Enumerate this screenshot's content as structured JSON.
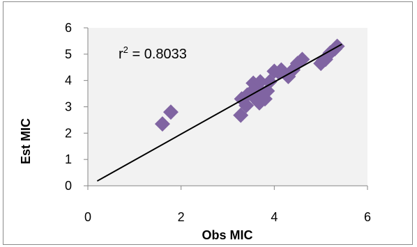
{
  "chart_data": {
    "type": "scatter",
    "title": "",
    "xlabel": "Obs MIC",
    "ylabel": "Est MIC",
    "xlim": [
      0,
      6
    ],
    "ylim": [
      0,
      6
    ],
    "xticks": [
      "0",
      "2",
      "4",
      "6"
    ],
    "yticks": [
      "0",
      "1",
      "2",
      "3",
      "4",
      "5",
      "6"
    ],
    "grid": false,
    "plot_background": "#f2f2f2",
    "marker_color": "#8064a2",
    "trendline_color": "#000000",
    "annotation": {
      "base": "r",
      "sup": "2",
      "rest": " = 0.8033"
    },
    "trendline": {
      "x": [
        0.2,
        5.45
      ],
      "y": [
        0.18,
        5.38
      ]
    },
    "points": [
      {
        "x": 1.6,
        "y": 2.35
      },
      {
        "x": 1.78,
        "y": 2.8
      },
      {
        "x": 3.28,
        "y": 2.68
      },
      {
        "x": 3.3,
        "y": 3.3
      },
      {
        "x": 3.4,
        "y": 3.05
      },
      {
        "x": 3.42,
        "y": 3.45
      },
      {
        "x": 3.5,
        "y": 3.55
      },
      {
        "x": 3.55,
        "y": 3.9
      },
      {
        "x": 3.6,
        "y": 3.3
      },
      {
        "x": 3.65,
        "y": 3.7
      },
      {
        "x": 3.68,
        "y": 3.15
      },
      {
        "x": 3.7,
        "y": 3.95
      },
      {
        "x": 3.75,
        "y": 3.5
      },
      {
        "x": 3.8,
        "y": 3.3
      },
      {
        "x": 3.85,
        "y": 3.6
      },
      {
        "x": 3.9,
        "y": 3.95
      },
      {
        "x": 4.0,
        "y": 4.35
      },
      {
        "x": 4.1,
        "y": 4.3
      },
      {
        "x": 4.15,
        "y": 4.4
      },
      {
        "x": 4.3,
        "y": 4.15
      },
      {
        "x": 4.4,
        "y": 4.4
      },
      {
        "x": 4.5,
        "y": 4.65
      },
      {
        "x": 4.6,
        "y": 4.8
      },
      {
        "x": 5.0,
        "y": 4.65
      },
      {
        "x": 5.05,
        "y": 4.75
      },
      {
        "x": 5.1,
        "y": 4.8
      },
      {
        "x": 5.2,
        "y": 5.05
      },
      {
        "x": 5.3,
        "y": 5.2
      },
      {
        "x": 5.35,
        "y": 5.3
      }
    ]
  }
}
